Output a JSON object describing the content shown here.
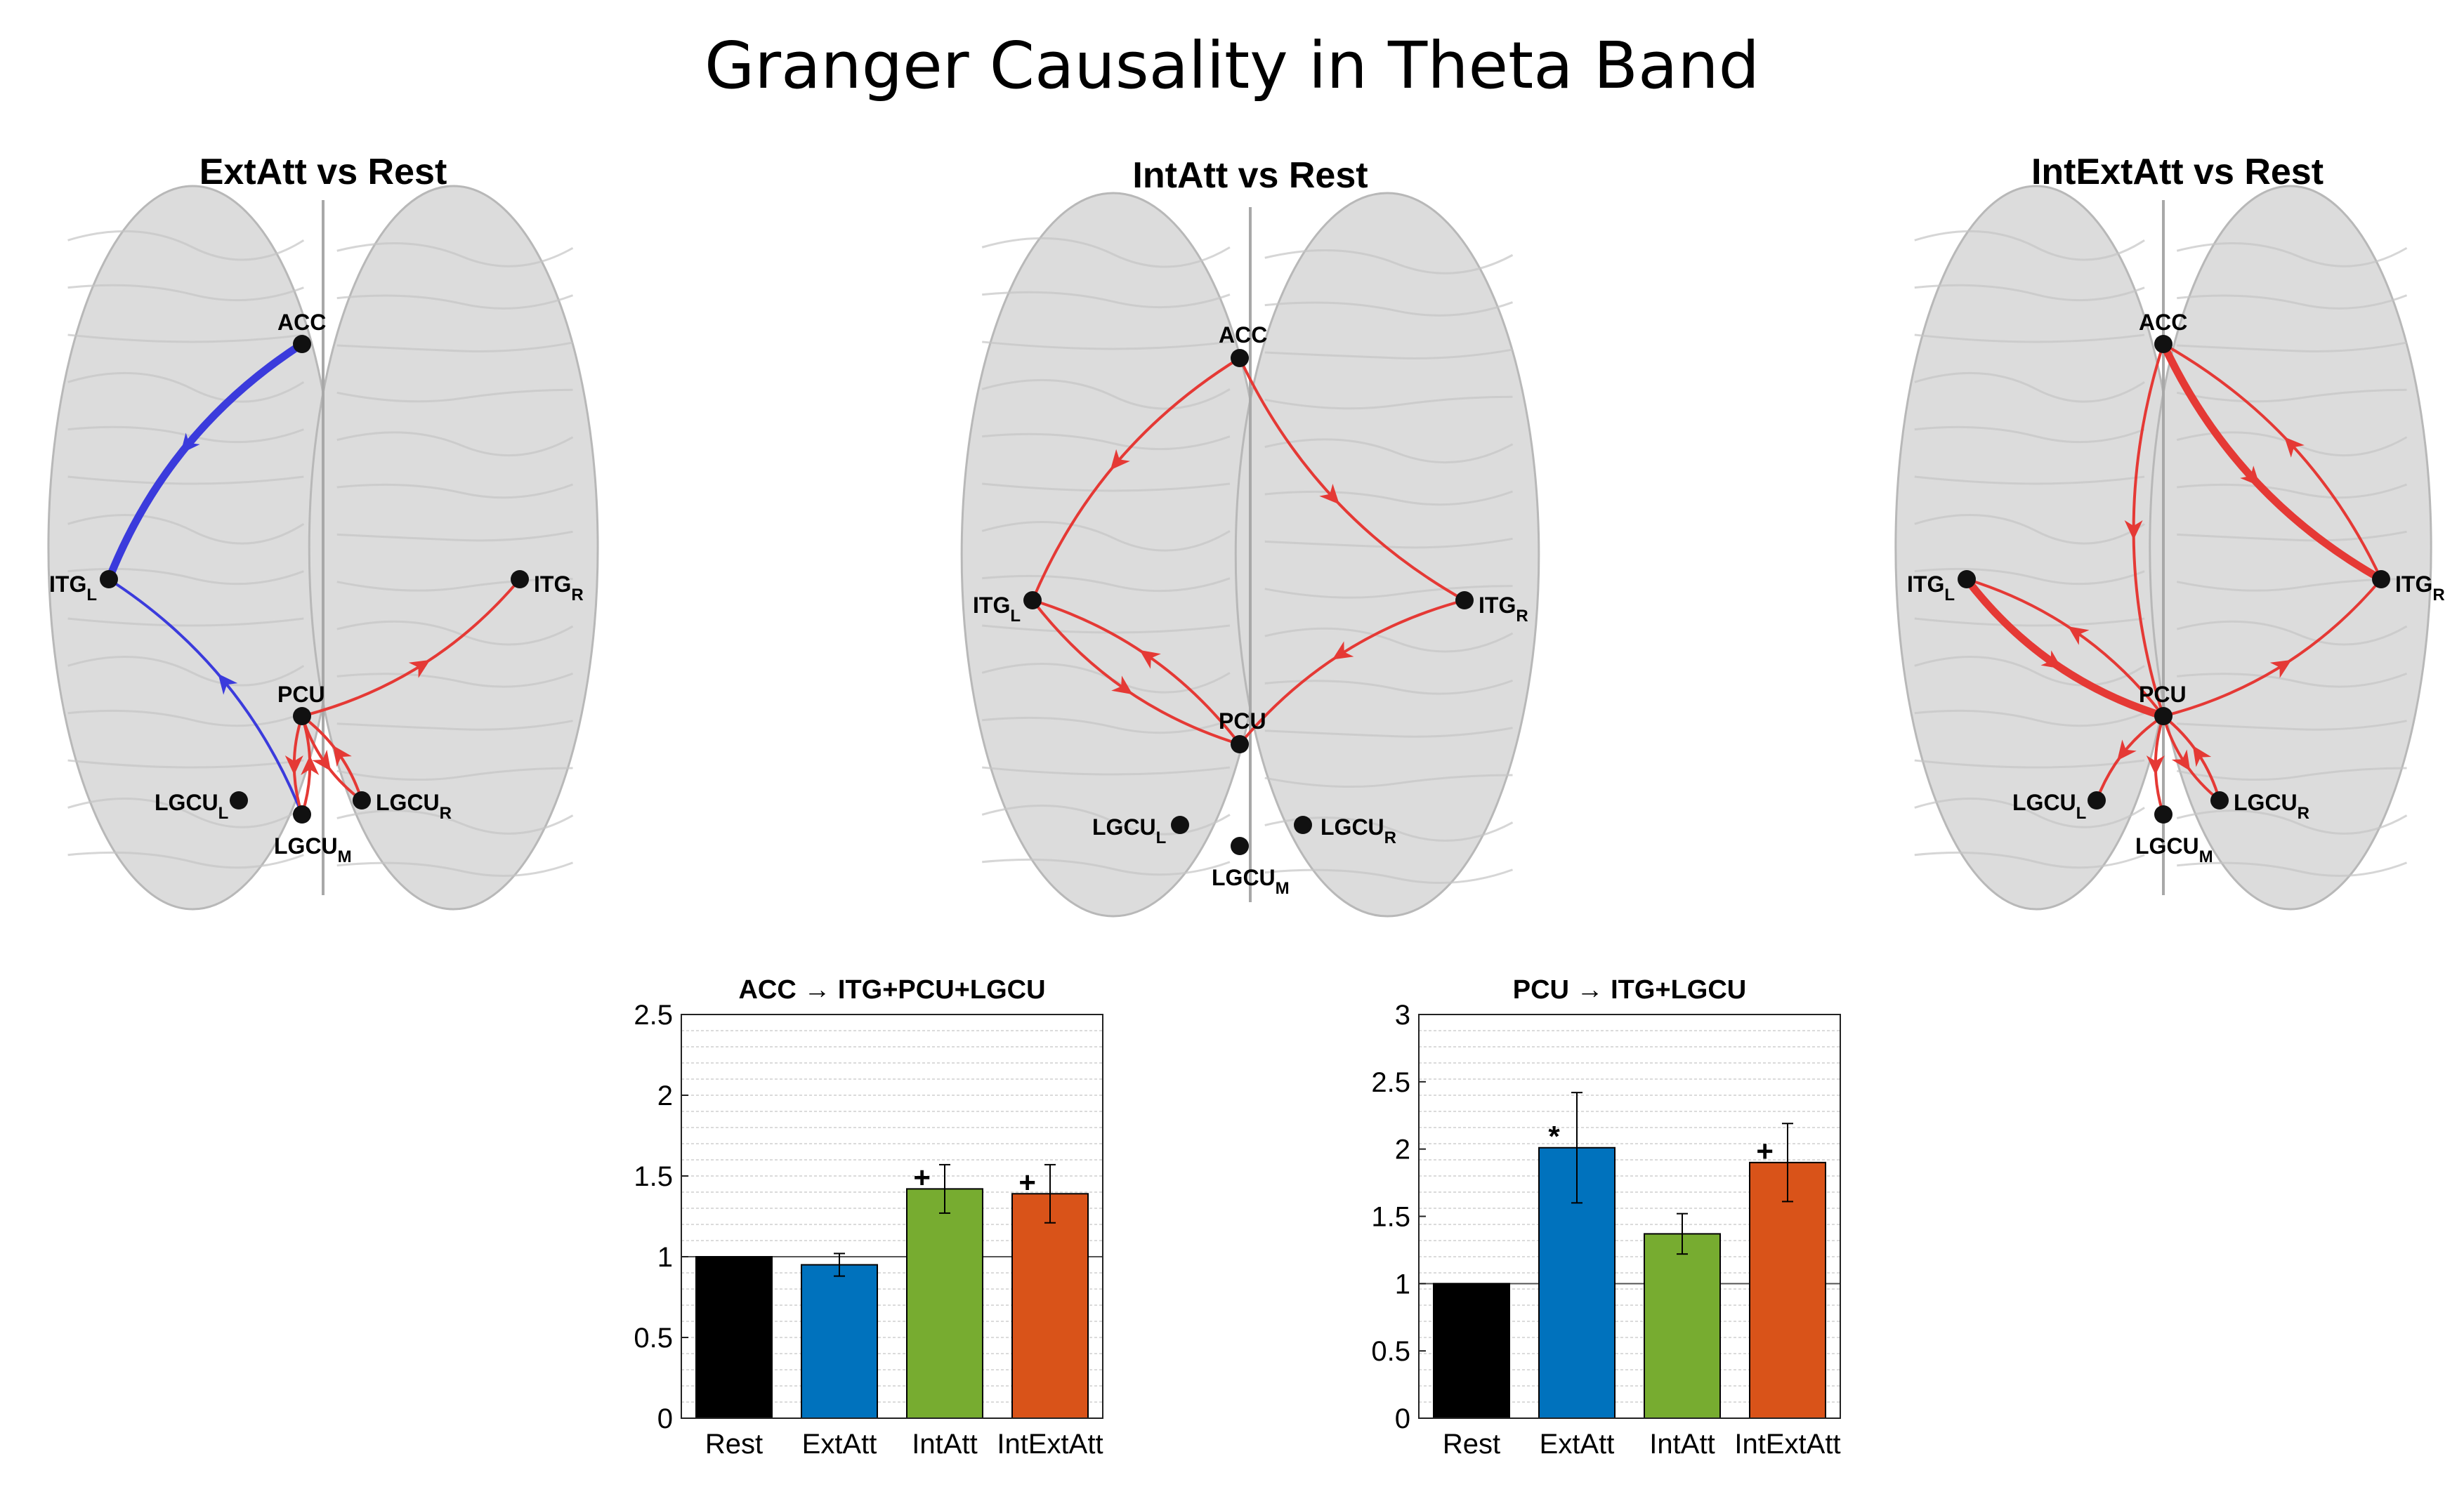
{
  "title": "Granger Causality in Theta Band",
  "networks": [
    {
      "title": "ExtAtt vs Rest",
      "nodes": [
        {
          "id": "ACC",
          "label": "ACC",
          "sub": ""
        },
        {
          "id": "ITGL",
          "label": "ITG",
          "sub": "L"
        },
        {
          "id": "ITGR",
          "label": "ITG",
          "sub": "R"
        },
        {
          "id": "PCU",
          "label": "PCU",
          "sub": ""
        },
        {
          "id": "LGCUL",
          "label": "LGCU",
          "sub": "L"
        },
        {
          "id": "LGCUM",
          "label": "LGCU",
          "sub": "M"
        },
        {
          "id": "LGCUR",
          "label": "LGCU",
          "sub": "R"
        }
      ],
      "edges": [
        {
          "from": "ACC",
          "to": "ITGL",
          "color": "#3b3bdc",
          "weight": "thick"
        },
        {
          "from": "LGCUM",
          "to": "ITGL",
          "color": "#3b3bdc",
          "weight": "thin"
        },
        {
          "from": "PCU",
          "to": "ITGR",
          "color": "#e53935",
          "weight": "thin"
        },
        {
          "from": "PCU",
          "to": "LGCUM",
          "color": "#e53935",
          "weight": "thin"
        },
        {
          "from": "LGCUM",
          "to": "PCU",
          "color": "#e53935",
          "weight": "thin"
        },
        {
          "from": "PCU",
          "to": "LGCUR",
          "color": "#e53935",
          "weight": "thin"
        },
        {
          "from": "LGCUR",
          "to": "PCU",
          "color": "#e53935",
          "weight": "thin"
        }
      ]
    },
    {
      "title": "IntAtt vs Rest",
      "nodes": [
        {
          "id": "ACC",
          "label": "ACC",
          "sub": ""
        },
        {
          "id": "ITGL",
          "label": "ITG",
          "sub": "L"
        },
        {
          "id": "ITGR",
          "label": "ITG",
          "sub": "R"
        },
        {
          "id": "PCU",
          "label": "PCU",
          "sub": ""
        },
        {
          "id": "LGCUL",
          "label": "LGCU",
          "sub": "L"
        },
        {
          "id": "LGCUM",
          "label": "LGCU",
          "sub": "M"
        },
        {
          "id": "LGCUR",
          "label": "LGCU",
          "sub": "R"
        }
      ],
      "edges": [
        {
          "from": "ACC",
          "to": "ITGL",
          "color": "#e53935",
          "weight": "thin"
        },
        {
          "from": "ACC",
          "to": "ITGR",
          "color": "#e53935",
          "weight": "thin"
        },
        {
          "from": "ITGL",
          "to": "PCU",
          "color": "#e53935",
          "weight": "thin"
        },
        {
          "from": "PCU",
          "to": "ITGL",
          "color": "#e53935",
          "weight": "thin"
        },
        {
          "from": "ITGR",
          "to": "PCU",
          "color": "#e53935",
          "weight": "thin"
        }
      ]
    },
    {
      "title": "IntExtAtt vs Rest",
      "nodes": [
        {
          "id": "ACC",
          "label": "ACC",
          "sub": ""
        },
        {
          "id": "ITGL",
          "label": "ITG",
          "sub": "L"
        },
        {
          "id": "ITGR",
          "label": "ITG",
          "sub": "R"
        },
        {
          "id": "PCU",
          "label": "PCU",
          "sub": ""
        },
        {
          "id": "LGCUL",
          "label": "LGCU",
          "sub": "L"
        },
        {
          "id": "LGCUM",
          "label": "LGCU",
          "sub": "M"
        },
        {
          "id": "LGCUR",
          "label": "LGCU",
          "sub": "R"
        }
      ],
      "edges": [
        {
          "from": "ACC",
          "to": "PCU",
          "color": "#e53935",
          "weight": "thin"
        },
        {
          "from": "ACC",
          "to": "ITGR",
          "color": "#e53935",
          "weight": "thick"
        },
        {
          "from": "ITGR",
          "to": "ACC",
          "color": "#e53935",
          "weight": "thin"
        },
        {
          "from": "ITGL",
          "to": "PCU",
          "color": "#e53935",
          "weight": "thick"
        },
        {
          "from": "PCU",
          "to": "ITGL",
          "color": "#e53935",
          "weight": "thin"
        },
        {
          "from": "PCU",
          "to": "ITGR",
          "color": "#e53935",
          "weight": "thin"
        },
        {
          "from": "PCU",
          "to": "LGCUL",
          "color": "#e53935",
          "weight": "thin"
        },
        {
          "from": "PCU",
          "to": "LGCUM",
          "color": "#e53935",
          "weight": "thin"
        },
        {
          "from": "PCU",
          "to": "LGCUR",
          "color": "#e53935",
          "weight": "thin"
        },
        {
          "from": "LGCUR",
          "to": "PCU",
          "color": "#e53935",
          "weight": "thin"
        }
      ]
    }
  ],
  "chart_data": [
    {
      "type": "bar",
      "title": "ACC → ITG+PCU+LGCU",
      "categories": [
        "Rest",
        "ExtAtt",
        "IntAtt",
        "IntExtAtt"
      ],
      "values": [
        1.0,
        0.95,
        1.42,
        1.39
      ],
      "errors": [
        0,
        0.07,
        0.15,
        0.18
      ],
      "markers": [
        "",
        "",
        "+",
        "+"
      ],
      "colors": [
        "#000000",
        "#0072bd",
        "#77ac30",
        "#d95319"
      ],
      "ylim": [
        0,
        2.5
      ],
      "yticks": [
        0,
        0.5,
        1,
        1.5,
        2,
        2.5
      ],
      "yticklabels": [
        "0",
        "0.5",
        "1",
        "1.5",
        "2",
        "2.5"
      ],
      "reference_line": 1,
      "grid": "minor horizontal"
    },
    {
      "type": "bar",
      "title": "PCU → ITG+LGCU",
      "categories": [
        "Rest",
        "ExtAtt",
        "IntAtt",
        "IntExtAtt"
      ],
      "values": [
        1.0,
        2.01,
        1.37,
        1.9
      ],
      "errors": [
        0,
        0.41,
        0.15,
        0.29
      ],
      "markers": [
        "",
        "*",
        "",
        "+"
      ],
      "colors": [
        "#000000",
        "#0072bd",
        "#77ac30",
        "#d95319"
      ],
      "ylim": [
        0,
        3
      ],
      "yticks": [
        0,
        0.5,
        1,
        1.5,
        2,
        2.5,
        3
      ],
      "yticklabels": [
        "0",
        "0.5",
        "1",
        "1.5",
        "2",
        "2.5",
        "3"
      ],
      "reference_line": 1,
      "grid": "minor horizontal"
    }
  ]
}
